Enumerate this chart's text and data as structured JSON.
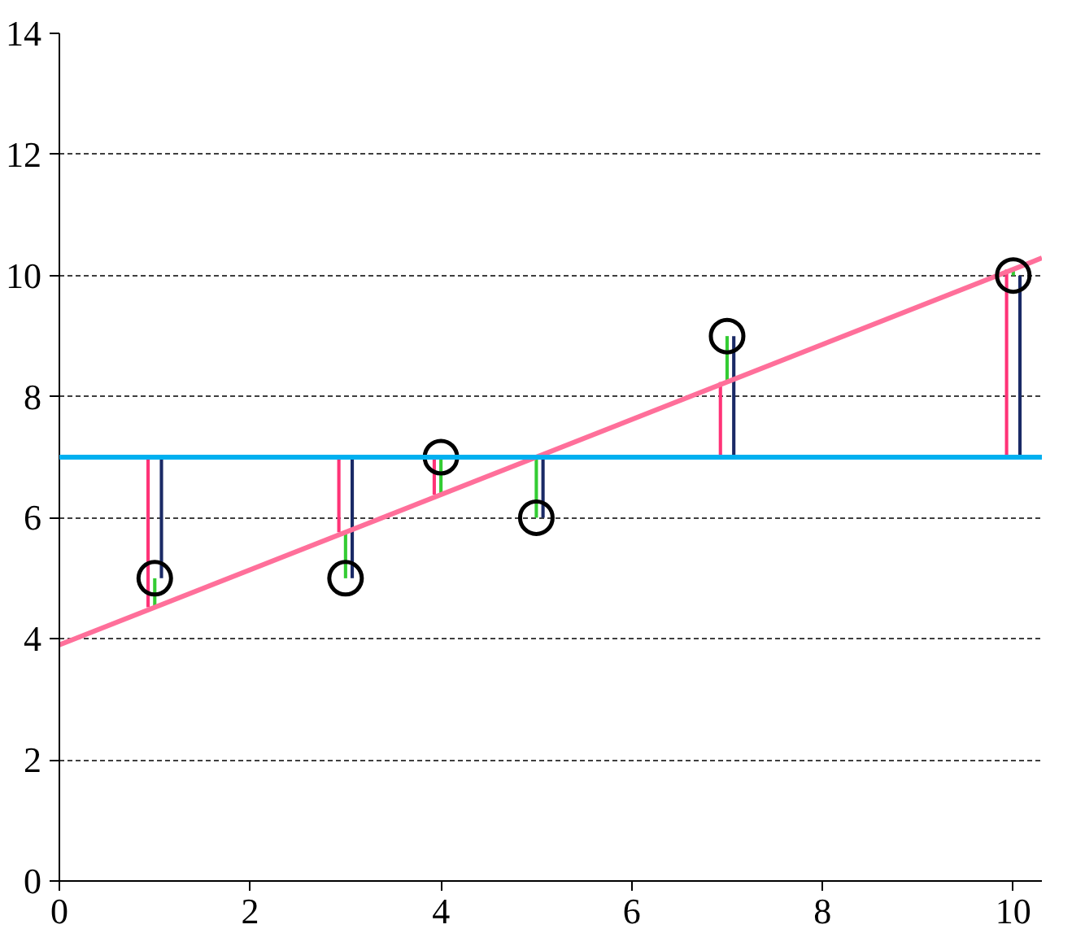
{
  "chart_data": {
    "type": "bar",
    "xlim": [
      0,
      10.3
    ],
    "ylim": [
      0,
      14
    ],
    "xticks": [
      0,
      2,
      4,
      6,
      8,
      10
    ],
    "yticks": [
      0,
      2,
      4,
      6,
      8,
      10,
      12,
      14
    ],
    "grid": "y",
    "ref_lines": [
      {
        "axis": "y",
        "value": 7,
        "color": "#00b0f0"
      }
    ],
    "series": [
      {
        "color": "#ff3377",
        "x": [
          1,
          3,
          4,
          5,
          7,
          10
        ],
        "base": [
          7,
          7,
          7,
          null,
          7,
          7
        ],
        "values": [
          -2.48,
          -1.24,
          -0.62,
          null,
          1.24,
          3.1
        ]
      },
      {
        "color": "#33cc33",
        "x": [
          1,
          3,
          4,
          5,
          7,
          10
        ],
        "base": [
          4.52,
          5.76,
          6.38,
          7,
          8.24,
          10.1
        ],
        "values": [
          0.48,
          -0.76,
          0.62,
          -1,
          0.76,
          -0.1
        ]
      },
      {
        "color": "#1a2a66",
        "x": [
          1,
          3,
          4,
          5,
          7,
          10
        ],
        "base": [
          7,
          7,
          null,
          7,
          7,
          7
        ],
        "values": [
          -2,
          -2,
          null,
          -1,
          2,
          3
        ]
      },
      {
        "type": "line",
        "color": "#ff6f9a",
        "x": [
          0,
          10.3
        ],
        "values": [
          3.9,
          10.29
        ]
      },
      {
        "type": "scatter",
        "marker": "circle",
        "color": "#000000",
        "x": [
          1,
          3,
          4,
          5,
          7,
          10
        ],
        "values": [
          5,
          5,
          7,
          6,
          9,
          10
        ]
      }
    ]
  }
}
